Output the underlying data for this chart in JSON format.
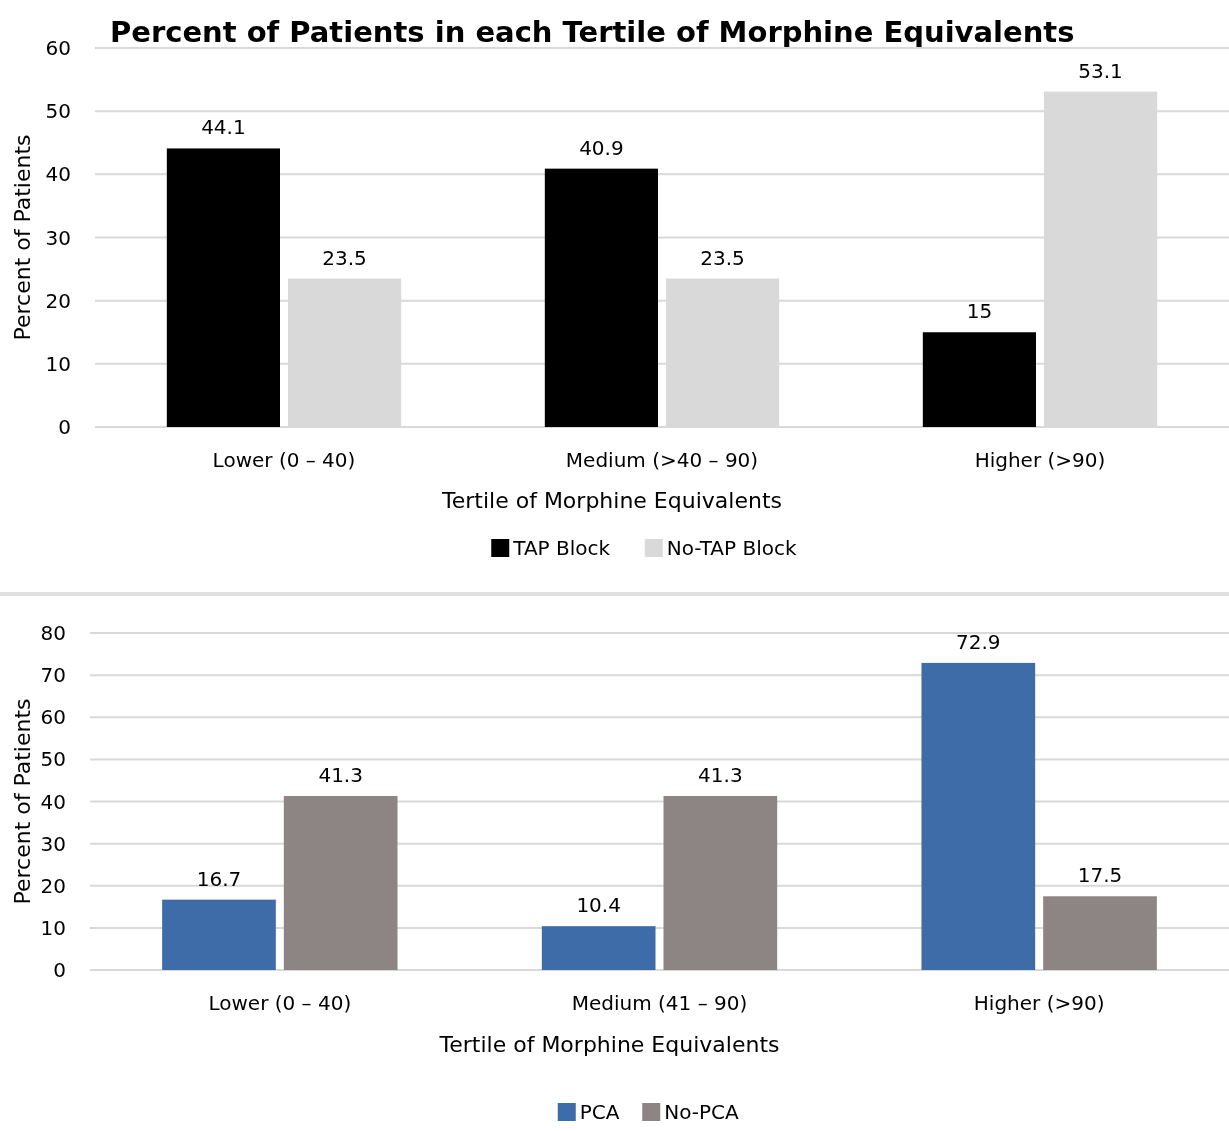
{
  "chart_data": [
    {
      "type": "bar",
      "title": "Percent of Patients in each Tertile of Morphine Equivalents",
      "xlabel": "Tertile of Morphine Equivalents",
      "ylabel": "Percent of Patients",
      "categories": [
        "Lower (0 – 40)",
        "Medium (>40 – 90)",
        "Higher (>90)"
      ],
      "series": [
        {
          "name": "TAP Block",
          "color": "#000000",
          "values": [
            44.1,
            40.9,
            15
          ]
        },
        {
          "name": "No-TAP Block",
          "color": "#d9d9d9",
          "values": [
            23.5,
            23.5,
            53.1
          ]
        }
      ],
      "ylim": [
        0,
        60
      ],
      "yticks": [
        0,
        10,
        20,
        30,
        40,
        50,
        60
      ],
      "grid": "y",
      "legend": "bottom",
      "data_labels": true
    },
    {
      "type": "bar",
      "xlabel": "Tertile of Morphine Equivalents",
      "ylabel": "Percent of Patients",
      "categories": [
        "Lower (0 – 40)",
        "Medium (41 – 90)",
        "Higher (>90)"
      ],
      "series": [
        {
          "name": "PCA",
          "color": "#3d6ca8",
          "values": [
            16.7,
            10.4,
            72.9
          ]
        },
        {
          "name": "No-PCA",
          "color": "#8c8584",
          "values": [
            41.3,
            41.3,
            17.5
          ]
        }
      ],
      "ylim": [
        0,
        80
      ],
      "yticks": [
        0,
        10,
        20,
        30,
        40,
        50,
        60,
        70,
        80
      ],
      "grid": "y",
      "legend": "bottom",
      "data_labels": true
    }
  ]
}
